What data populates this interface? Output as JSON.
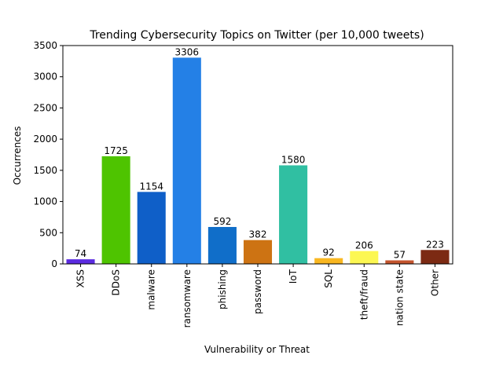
{
  "chart_data": {
    "type": "bar",
    "title": "Trending Cybersecurity Topics on Twitter (per 10,000 tweets)",
    "xlabel": "Vulnerability or Threat",
    "ylabel": "Occurrences",
    "ylim": [
      0,
      3500
    ],
    "yticks": [
      0,
      500,
      1000,
      1500,
      2000,
      2500,
      3000,
      3500
    ],
    "categories": [
      "XSS",
      "DDoS",
      "malware",
      "ransomware",
      "phishing",
      "password",
      "IoT",
      "SQL",
      "theft/fraud",
      "nation state",
      "Other"
    ],
    "values": [
      74,
      1725,
      1154,
      3306,
      592,
      382,
      1580,
      92,
      206,
      57,
      223
    ],
    "colors": [
      "#5b2be0",
      "#4ec400",
      "#0f5fc8",
      "#2480e6",
      "#106ec9",
      "#cd7313",
      "#30bfa2",
      "#f9b721",
      "#fcf752",
      "#c3542d",
      "#7c2a13"
    ],
    "grid": false,
    "legend": "none"
  }
}
